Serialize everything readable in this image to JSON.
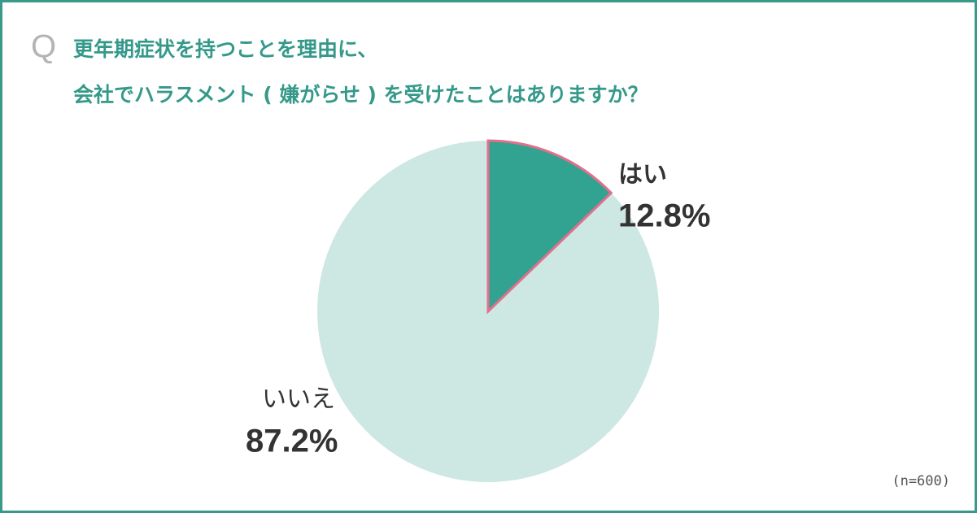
{
  "chart_data": {
    "type": "pie",
    "question_marker": "Q",
    "title_lines": [
      "更年期症状を持つことを理由に、",
      "会社でハラスメント ( 嫌がらせ ) を受けたことはありますか？"
    ],
    "categories": [
      "はい",
      "いいえ"
    ],
    "values": [
      12.8,
      87.2
    ],
    "value_labels": [
      "12.8%",
      "87.2%"
    ],
    "colors": [
      "#33a391",
      "#cde7e3"
    ],
    "note": "(n=600)"
  }
}
